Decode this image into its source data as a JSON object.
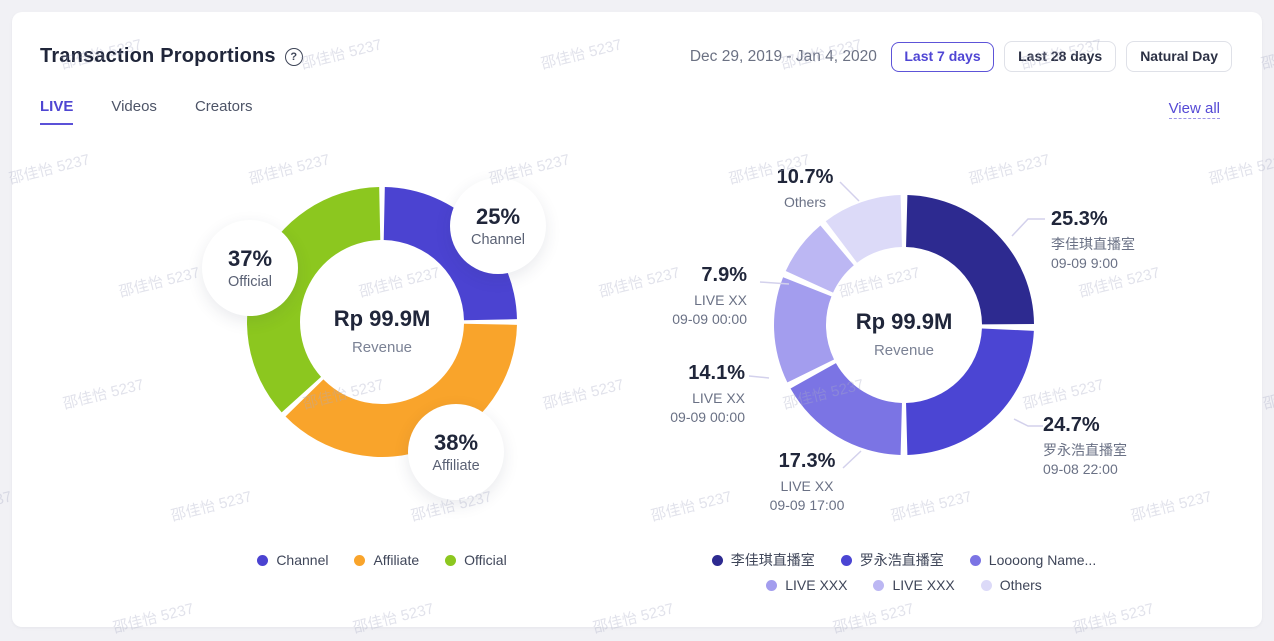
{
  "header": {
    "title": "Transaction Proportions",
    "help_glyph": "?",
    "date_range": "Dec 29, 2019 - Jan 4, 2020",
    "range_buttons": [
      {
        "label": "Last 7 days",
        "active": true
      },
      {
        "label": "Last 28 days",
        "active": false
      },
      {
        "label": "Natural Day",
        "active": false
      }
    ]
  },
  "tabs": [
    {
      "label": "LIVE",
      "active": true
    },
    {
      "label": "Videos",
      "active": false
    },
    {
      "label": "Creators",
      "active": false
    }
  ],
  "view_all_label": "View all",
  "watermark_text": "邵佳怡 5237",
  "colors": {
    "accent": "#4f46d2",
    "channel_blue": "#4b43d1",
    "affiliate_orange": "#f9a42b",
    "official_green": "#8cc71f",
    "leader_line": "#d3d1ec"
  },
  "chart_data": [
    {
      "type": "pie",
      "variant": "donut",
      "position": "left",
      "center_value": "Rp 99.9M",
      "center_label": "Revenue",
      "segments": [
        {
          "label": "Channel",
          "value": 25,
          "display": "25%",
          "color": "#4b43d1"
        },
        {
          "label": "Affiliate",
          "value": 38,
          "display": "38%",
          "color": "#f9a42b"
        },
        {
          "label": "Official",
          "value": 37,
          "display": "37%",
          "color": "#8cc71f"
        }
      ],
      "legend": [
        {
          "label": "Channel",
          "color": "#4b43d1"
        },
        {
          "label": "Affiliate",
          "color": "#f9a42b"
        },
        {
          "label": "Official",
          "color": "#8cc71f"
        }
      ]
    },
    {
      "type": "pie",
      "variant": "donut",
      "position": "right",
      "center_value": "Rp 99.9M",
      "center_label": "Revenue",
      "segments": [
        {
          "label": "李佳琪直播室",
          "sublabel": "09-09 9:00",
          "value": 25.3,
          "display": "25.3%",
          "color": "#2d2a90"
        },
        {
          "label": "罗永浩直播室",
          "sublabel": "09-08 22:00",
          "value": 24.7,
          "display": "24.7%",
          "color": "#4b45d3"
        },
        {
          "label": "LIVE XX",
          "sublabel": "09-09 17:00",
          "value": 17.3,
          "display": "17.3%",
          "color": "#7b74e4"
        },
        {
          "label": "LIVE XX",
          "sublabel": "09-09 00:00",
          "value": 14.1,
          "display": "14.1%",
          "color": "#a39dee"
        },
        {
          "label": "LIVE XX",
          "sublabel": "09-09 00:00",
          "value": 7.9,
          "display": "7.9%",
          "color": "#bcb7f3"
        },
        {
          "label": "Others",
          "sublabel": "",
          "value": 10.7,
          "display": "10.7%",
          "color": "#dcdaf8"
        }
      ],
      "legend": [
        {
          "label": "李佳琪直播室",
          "color": "#2d2a90"
        },
        {
          "label": "罗永浩直播室",
          "color": "#4b45d3"
        },
        {
          "label": "Loooong Name...",
          "color": "#7b74e4"
        },
        {
          "label": "LIVE XXX",
          "color": "#a39dee"
        },
        {
          "label": "LIVE XXX",
          "color": "#bcb7f3"
        },
        {
          "label": "Others",
          "color": "#dcdaf8"
        }
      ]
    }
  ]
}
